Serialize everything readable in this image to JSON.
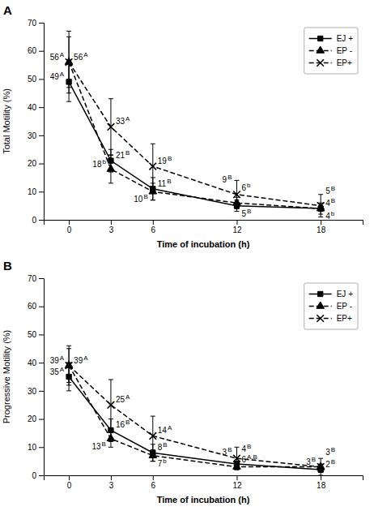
{
  "chart_data": [
    {
      "type": "line",
      "title": "A",
      "xlabel": "Time of incubation (h)",
      "ylabel": "Total Motility (%)",
      "x": [
        0,
        3,
        6,
        12,
        18
      ],
      "xlim": [
        -1.8,
        21.0
      ],
      "xticks": [
        0,
        3,
        6,
        12,
        18
      ],
      "ylim": [
        0,
        70
      ],
      "yticks": [
        0,
        10,
        20,
        30,
        40,
        50,
        60,
        70
      ],
      "grid": false,
      "legend": "upper right",
      "data_labels": true,
      "series": [
        {
          "name": "EJ +",
          "color": "black",
          "marker": "square",
          "line_style": "solid",
          "values": [
            49,
            21,
            11,
            5,
            4
          ],
          "errors": [
            7,
            4,
            4,
            2,
            2
          ],
          "annotations": [
            "A",
            "B",
            "B",
            "B",
            "B"
          ]
        },
        {
          "name": "EP -",
          "color": "black",
          "marker": "triangle",
          "line_style": "dashed",
          "values": [
            56,
            18,
            10,
            6,
            4
          ],
          "errors": [
            9,
            5,
            3,
            2,
            1
          ],
          "annotations": [
            "A",
            "b",
            "B",
            "b",
            "b"
          ]
        },
        {
          "name": "EP+",
          "color": "black",
          "marker": "x",
          "line_style": "dashed",
          "values": [
            56,
            33,
            19,
            9,
            5
          ],
          "errors": [
            11,
            10,
            8,
            5,
            4
          ],
          "annotations": [
            "A",
            "A",
            "B",
            "B",
            "B"
          ]
        }
      ]
    },
    {
      "type": "line",
      "title": "B",
      "xlabel": "Time of incubation (h)",
      "ylabel": "Progressive Motility (%)",
      "x": [
        0,
        3,
        6,
        12,
        18
      ],
      "xlim": [
        -1.8,
        21.0
      ],
      "xticks": [
        0,
        3,
        6,
        12,
        18
      ],
      "ylim": [
        0,
        70
      ],
      "yticks": [
        0,
        10,
        20,
        30,
        40,
        50,
        60,
        70
      ],
      "grid": false,
      "legend": "upper right",
      "data_labels": true,
      "series": [
        {
          "name": "EJ +",
          "color": "black",
          "marker": "square",
          "line_style": "solid",
          "values": [
            35,
            16,
            8,
            4,
            2
          ],
          "errors": [
            5,
            4,
            3,
            1,
            1
          ],
          "annotations": [
            "A",
            "B",
            "B",
            "B",
            "B"
          ]
        },
        {
          "name": "EP -",
          "color": "black",
          "marker": "triangle",
          "line_style": "dashed",
          "values": [
            39,
            13,
            7,
            3,
            3
          ],
          "errors": [
            7,
            3,
            2,
            1,
            1
          ],
          "annotations": [
            "A",
            "B",
            "b",
            "B",
            "B"
          ]
        },
        {
          "name": "EP+",
          "color": "black",
          "marker": "x",
          "line_style": "dashed",
          "values": [
            39,
            25,
            14,
            6,
            3
          ],
          "errors": [
            6,
            9,
            7,
            4,
            3
          ],
          "annotations": [
            "A",
            "A",
            "A",
            "A,B",
            "B"
          ]
        }
      ]
    }
  ]
}
